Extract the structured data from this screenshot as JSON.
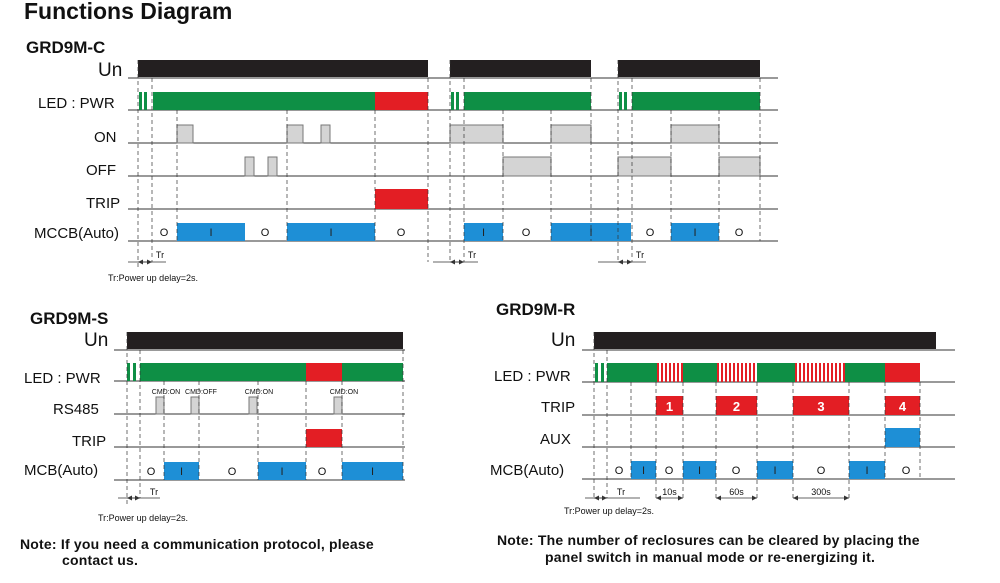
{
  "title": "Functions Diagram",
  "sections": {
    "c": {
      "title": "GRD9M-C",
      "labels": {
        "un": "Un",
        "led": "LED : PWR",
        "on": "ON",
        "off": "OFF",
        "trip": "TRIP",
        "mccb": "MCCB(Auto)"
      },
      "state_off": "O",
      "state_on": "I",
      "tr": "Tr",
      "footnote": "Tr:Power up delay=2s."
    },
    "s": {
      "title": "GRD9M-S",
      "labels": {
        "un": "Un",
        "led": "LED : PWR",
        "rs485": "RS485",
        "trip": "TRIP",
        "mcb": "MCB(Auto)"
      },
      "cmds": [
        "CMD:ON",
        "CMD:OFF",
        "CMD:ON",
        "CMD:ON"
      ],
      "state_off": "O",
      "state_on": "I",
      "tr": "Tr",
      "footnote": "Tr:Power up delay=2s.",
      "note_line1": "Note: If you need a communication protocol, please",
      "note_line2": "contact us."
    },
    "r": {
      "title": "GRD9M-R",
      "labels": {
        "un": "Un",
        "led": "LED : PWR",
        "trip": "TRIP",
        "aux": "AUX",
        "mcb": "MCB(Auto)"
      },
      "trip_numbers": [
        "1",
        "2",
        "3",
        "4"
      ],
      "delays": [
        "10s",
        "60s",
        "300s"
      ],
      "state_off": "O",
      "state_on": "I",
      "tr": "Tr",
      "footnote": "Tr:Power up delay=2s.",
      "note_line1": "Note: The number of reclosures can be cleared by placing  the",
      "note_line2": "panel switch in manual mode or re-energizing it."
    }
  },
  "colors": {
    "power": "#231f20",
    "led_green": "#0e8f45",
    "trip_red": "#e31e24",
    "mcb_blue": "#1e8fd6",
    "pulse_grey": "#d4d4d4",
    "line": "#333333"
  }
}
